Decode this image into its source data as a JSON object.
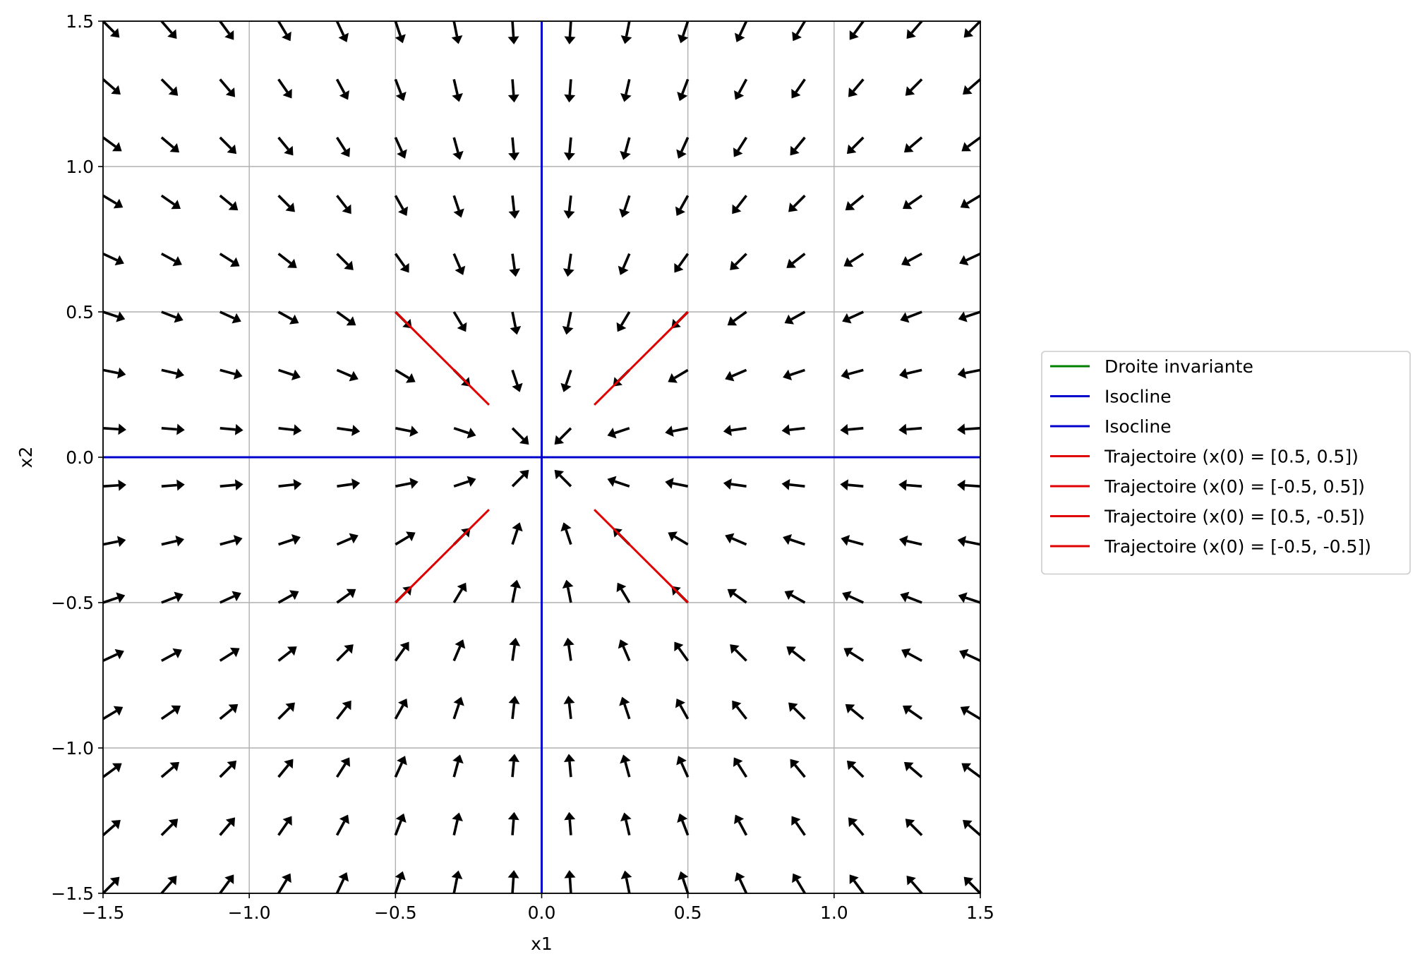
{
  "chart_data": {
    "type": "quiver",
    "title": "",
    "xlabel": "x1",
    "ylabel": "x2",
    "xlim": [
      -1.5,
      1.5
    ],
    "ylim": [
      -1.5,
      1.5
    ],
    "xticks": [
      -1.5,
      -1.0,
      -0.5,
      0.0,
      0.5,
      1.0,
      1.5
    ],
    "yticks": [
      -1.5,
      -1.0,
      -0.5,
      0.0,
      0.5,
      1.0,
      1.5
    ],
    "xtick_labels": [
      "−1.5",
      "−1.0",
      "−0.5",
      "0.0",
      "0.5",
      "1.0",
      "1.5"
    ],
    "ytick_labels": [
      "−1.5",
      "−1.0",
      "−0.5",
      "0.0",
      "0.5",
      "1.0",
      "1.5"
    ],
    "grid": true,
    "legend_position": "outside-right",
    "vector_field": {
      "x_start": -1.5,
      "x_stop": 1.5,
      "y_start": -1.5,
      "y_stop": 1.5,
      "count": 16,
      "dx": "-x1",
      "dy": "-x2",
      "normalized": true,
      "color": "#000000"
    },
    "series": [
      {
        "name": "Droite invariante",
        "color": "#008000",
        "x": [],
        "y": []
      },
      {
        "name": "Isocline",
        "color": "#0000cc",
        "x": [
          0,
          0
        ],
        "y": [
          -1.5,
          1.5
        ]
      },
      {
        "name": "Isocline",
        "color": "#0000cc",
        "x": [
          -1.5,
          1.5
        ],
        "y": [
          0,
          0
        ]
      },
      {
        "name": "Trajectoire (x(0) = [0.5, 0.5])",
        "color": "#e00000",
        "x": [
          0.5,
          0.18
        ],
        "y": [
          0.5,
          0.18
        ]
      },
      {
        "name": "Trajectoire (x(0) = [-0.5, 0.5])",
        "color": "#e00000",
        "x": [
          -0.5,
          -0.18
        ],
        "y": [
          0.5,
          0.18
        ]
      },
      {
        "name": "Trajectoire (x(0) = [0.5, -0.5])",
        "color": "#e00000",
        "x": [
          0.5,
          0.18
        ],
        "y": [
          -0.5,
          -0.18
        ]
      },
      {
        "name": "Trajectoire (x(0) = [-0.5, -0.5])",
        "color": "#e00000",
        "x": [
          -0.5,
          -0.18
        ],
        "y": [
          -0.5,
          -0.18
        ]
      }
    ]
  }
}
